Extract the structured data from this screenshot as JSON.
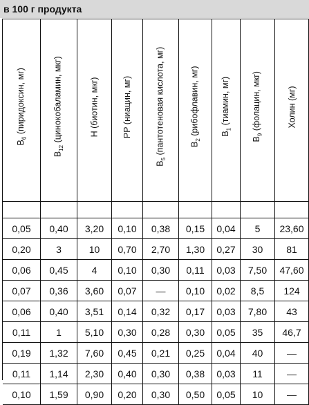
{
  "title": "в 100 г продукта",
  "headers": [
    {
      "base": "B",
      "sub": "6",
      "rest": " (пиридоксин, мг)"
    },
    {
      "base": "B",
      "sub": "12",
      "rest": " (цинокобаламин, мкг)"
    },
    {
      "base": "",
      "sub": "",
      "rest": "H (биотин, мкг)"
    },
    {
      "base": "",
      "sub": "",
      "rest": "PP (ниацин, мг)"
    },
    {
      "base": "B",
      "sub": "5",
      "rest": " (пантотеновая кислота, мг)"
    },
    {
      "base": "B",
      "sub": "2",
      "rest": " (рибофлавин, мг)"
    },
    {
      "base": "B",
      "sub": "1",
      "rest": " (тиамин, мг)"
    },
    {
      "base": "B",
      "sub": "9",
      "rest": " (фолацин, мкг)"
    },
    {
      "base": "",
      "sub": "",
      "rest": "Холин (мг)"
    }
  ],
  "rows": [
    [
      "0,05",
      "0,40",
      "3,20",
      "0,10",
      "0,38",
      "0,15",
      "0,04",
      "5",
      "23,60"
    ],
    [
      "0,20",
      "3",
      "10",
      "0,70",
      "2,70",
      "1,30",
      "0,27",
      "30",
      "81"
    ],
    [
      "0,06",
      "0,45",
      "4",
      "0,10",
      "0,30",
      "0,11",
      "0,03",
      "7,50",
      "47,60"
    ],
    [
      "0,07",
      "0,36",
      "3,60",
      "0,07",
      "—",
      "0,10",
      "0,02",
      "8,5",
      "124"
    ],
    [
      "0,06",
      "0,40",
      "3,51",
      "0,14",
      "0,32",
      "0,17",
      "0,03",
      "7,80",
      "43"
    ],
    [
      "0,11",
      "1",
      "5,10",
      "0,30",
      "0,28",
      "0,30",
      "0,05",
      "35",
      "46,7"
    ],
    [
      "0,19",
      "1,32",
      "7,60",
      "0,45",
      "0,21",
      "0,25",
      "0,04",
      "40",
      "—"
    ],
    [
      "0,11",
      "1,14",
      "2,30",
      "0,40",
      "0,30",
      "0,38",
      "0,03",
      "11",
      "—"
    ],
    [
      "0,10",
      "1,59",
      "0,90",
      "0,20",
      "0,30",
      "0,50",
      "0,05",
      "10",
      "—"
    ]
  ]
}
